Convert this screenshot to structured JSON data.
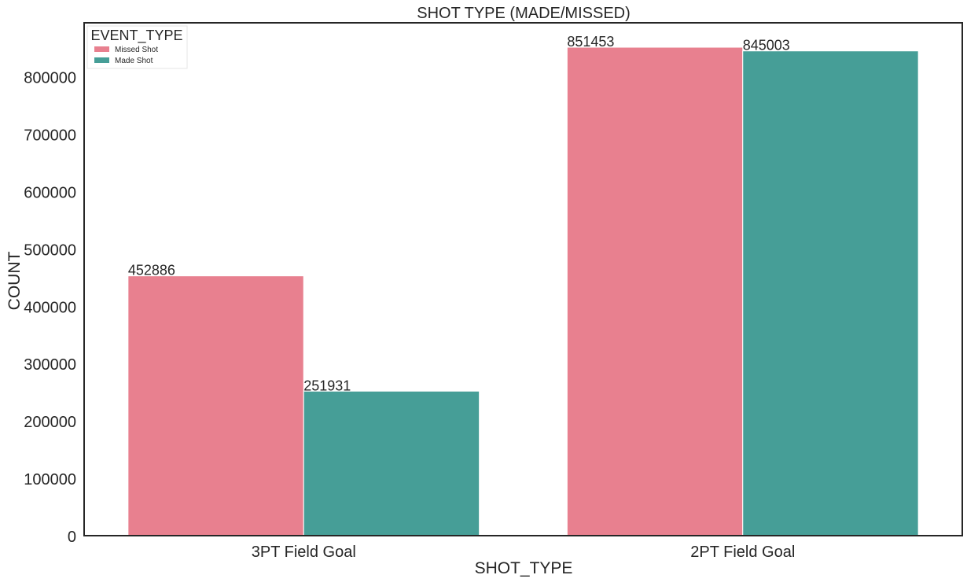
{
  "chart_data": {
    "type": "bar",
    "title": "SHOT TYPE (MADE/MISSED)",
    "xlabel": "SHOT_TYPE",
    "ylabel": "COUNT",
    "categories": [
      "3PT Field Goal",
      "2PT Field Goal"
    ],
    "series": [
      {
        "name": "Missed Shot",
        "color": "#e8808f",
        "values": [
          452886,
          851453
        ]
      },
      {
        "name": "Made Shot",
        "color": "#469e97",
        "values": [
          251931,
          845003
        ]
      }
    ],
    "ylim": [
      0,
      894000
    ],
    "yticks": [
      0,
      100000,
      200000,
      300000,
      400000,
      500000,
      600000,
      700000,
      800000
    ],
    "value_labels": true,
    "legend": {
      "title": "EVENT_TYPE",
      "placement": "top-left"
    },
    "grid": false
  }
}
